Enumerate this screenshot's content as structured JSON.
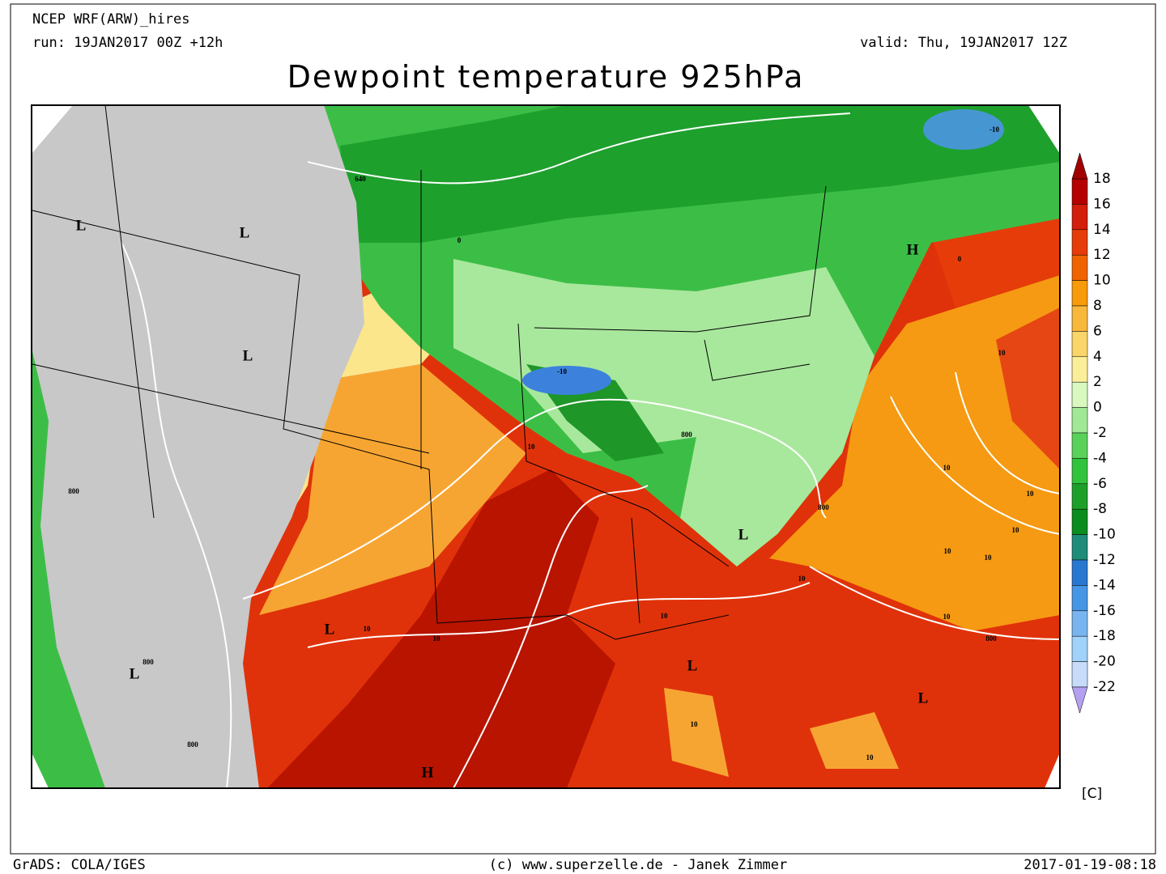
{
  "header": {
    "model": "NCEP WRF(ARW)_hires",
    "run": "run: 19JAN2017 00Z +12h",
    "valid": "valid: Thu, 19JAN2017 12Z",
    "title": "Dewpoint temperature 925hPa"
  },
  "colorbar": {
    "labels": [
      18,
      16,
      14,
      12,
      10,
      8,
      6,
      4,
      2,
      0,
      -2,
      -4,
      -6,
      -8,
      -10,
      -12,
      -14,
      -16,
      -18,
      -20,
      -22
    ],
    "colors": [
      "#b40000",
      "#d21e0a",
      "#e63c0a",
      "#f06400",
      "#f79b0a",
      "#f8b83c",
      "#f9d56a",
      "#fbee98",
      "#d8f8c0",
      "#a0e896",
      "#5ad25a",
      "#32c33c",
      "#1ea028",
      "#0a8c1e",
      "#1e8c78",
      "#2878d2",
      "#4696e6",
      "#78b4f0",
      "#a0d2fa",
      "#c8dcfa"
    ],
    "top_color": "#a00000",
    "bottom_color": "#b4a0f0",
    "unit": "[C]"
  },
  "map_labels": [
    "L",
    "L",
    "L",
    "L",
    "L",
    "L",
    "L",
    "L",
    "H",
    "H",
    "640",
    "0",
    "-10",
    "800",
    "10",
    "800",
    "800",
    "800",
    "10",
    "10",
    "10",
    "10",
    "800",
    "10",
    "10",
    "10",
    "10",
    "10",
    "10",
    "10",
    "800",
    "10",
    "10",
    "-10",
    "0"
  ],
  "footer": {
    "left": "GrADS: COLA/IGES",
    "center": "(c) www.superzelle.de - Janek Zimmer",
    "right": "2017-01-19-08:18"
  }
}
